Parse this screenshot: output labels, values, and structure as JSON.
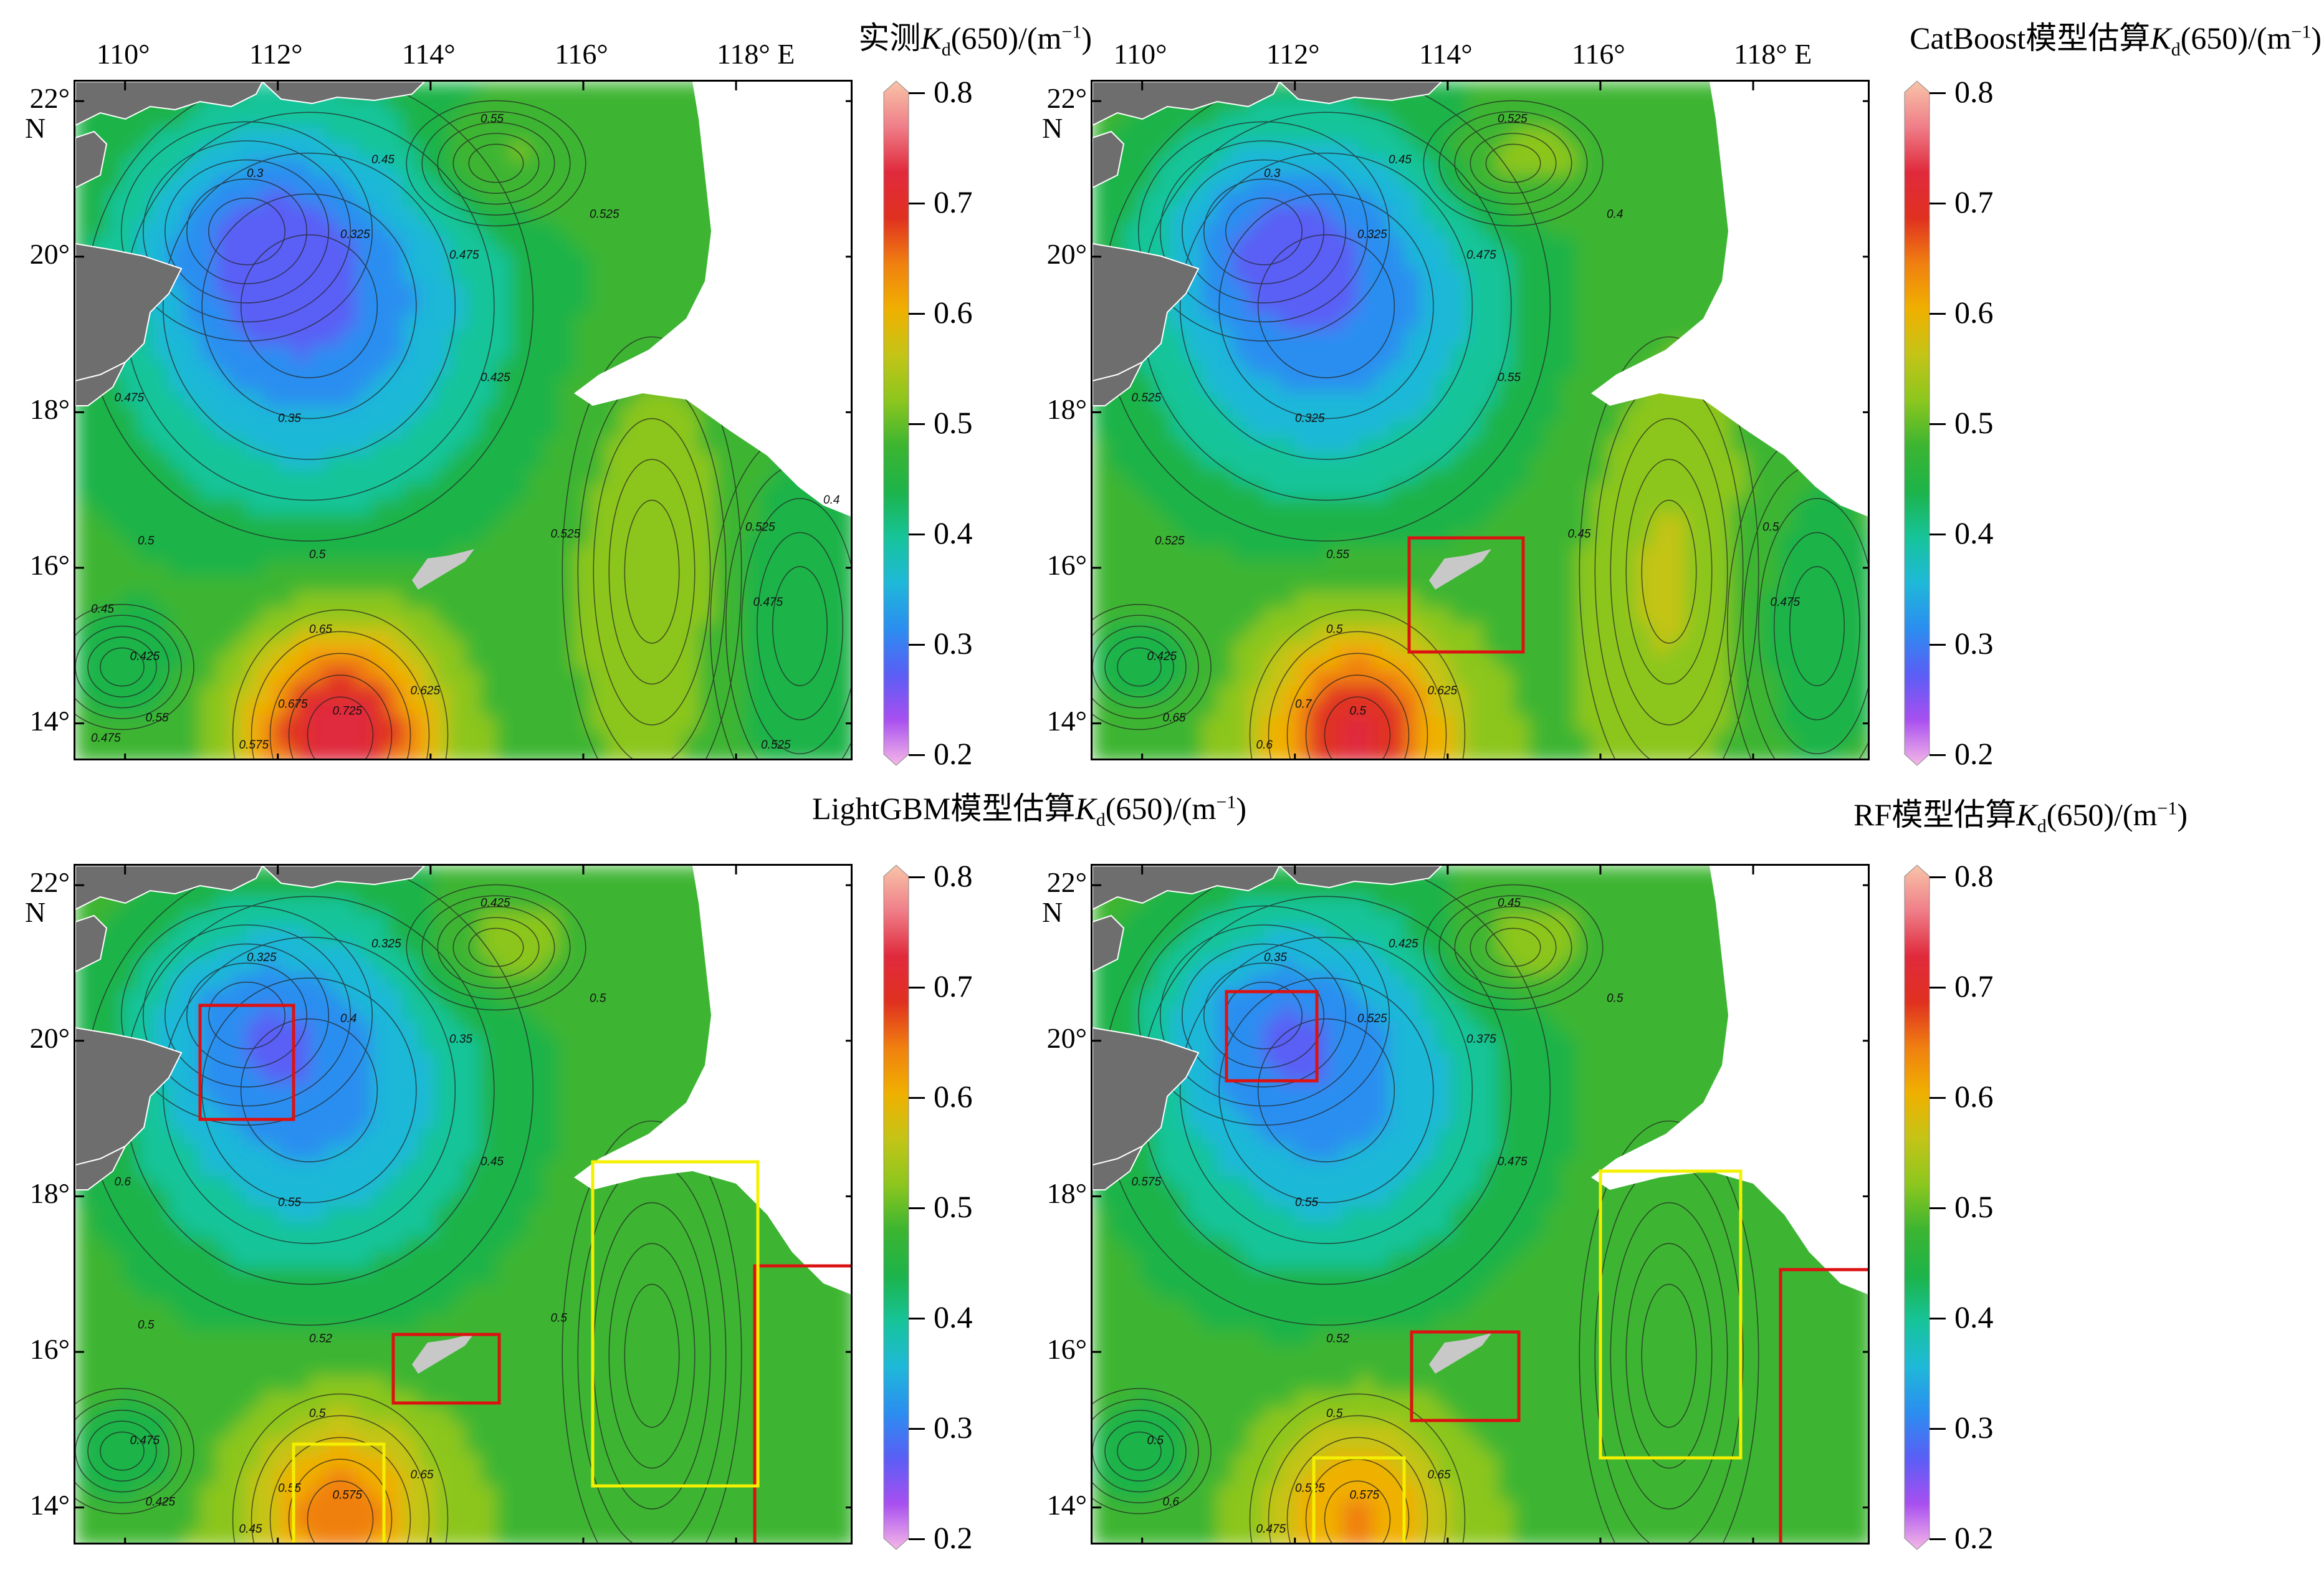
{
  "figure": {
    "lon_ticks": [
      "110°",
      "112°",
      "114°",
      "116°",
      "118° E"
    ],
    "lat_ticks": [
      "22°",
      "20°",
      "18°",
      "16°",
      "14°"
    ],
    "lat_unit_label": "N",
    "colorbar_ticks": [
      "0.8",
      "0.7",
      "0.6",
      "0.5",
      "0.4",
      "0.3",
      "0.2"
    ],
    "colorbar_range": [
      0.2,
      0.8
    ],
    "colorbar_colors": [
      "#f5b8e6",
      "#a84ff0",
      "#5a5ef5",
      "#2b8ef0",
      "#1fb8d8",
      "#16c49a",
      "#1db34a",
      "#3cb531",
      "#8cc61e",
      "#c4c417",
      "#f0b000",
      "#f08010",
      "#e03020",
      "#e02a3c",
      "#ef7e88",
      "#f8c4a8"
    ],
    "land_color": "#6e6e6e",
    "island_color": "#c8c8c8",
    "box_colors": {
      "red": "#dd1111",
      "yellow": "#f4f000"
    }
  },
  "panels": [
    {
      "id": "measured",
      "title_pre": "实测",
      "title_var": "K",
      "title_sub": "d",
      "title_post": "(650)/(m",
      "title_sup": "−1",
      "title_end": ")",
      "contour_labels": [
        "0.3",
        "0.325",
        "0.35",
        "0.45",
        "0.475",
        "0.425",
        "0.55",
        "0.525",
        "0.5",
        "0.65",
        "0.725",
        "0.625",
        "0.675",
        "0.575",
        "0.55",
        "0.425",
        "0.475",
        "0.5",
        "0.525",
        "0.525",
        "0.475",
        "0.4",
        "0.45",
        "0.475",
        "0.525"
      ]
    },
    {
      "id": "catboost",
      "title_pre": "CatBoost模型估算",
      "title_var": "K",
      "title_sub": "d",
      "title_post": "(650)/(m",
      "title_sup": "−1",
      "title_end": ")",
      "contour_labels": [
        "0.3",
        "0.325",
        "0.325",
        "0.45",
        "0.475",
        "0.55",
        "0.525",
        "0.4",
        "0.55",
        "0.5",
        "0.5",
        "0.625",
        "0.7",
        "0.6",
        "0.65",
        "0.425",
        "0.525",
        "0.525",
        "0.45",
        "0.5",
        "0.475"
      ]
    },
    {
      "id": "lightgbm",
      "title_pre": "LightGBM模型估算",
      "title_var": "K",
      "title_sub": "d",
      "title_post": "(650)/(m",
      "title_sup": "−1",
      "title_end": ")",
      "contour_labels": [
        "0.325",
        "0.4",
        "0.55",
        "0.325",
        "0.35",
        "0.45",
        "0.425",
        "0.5",
        "0.52",
        "0.5",
        "0.575",
        "0.65",
        "0.55",
        "0.45",
        "0.425",
        "0.475",
        "0.6",
        "0.5",
        "0.5"
      ]
    },
    {
      "id": "rf",
      "title_pre": "RF模型估算",
      "title_var": "K",
      "title_sub": "d",
      "title_post": "(650)/(m",
      "title_sup": "−1",
      "title_end": ")",
      "contour_labels": [
        "0.35",
        "0.525",
        "0.55",
        "0.425",
        "0.375",
        "0.475",
        "0.45",
        "0.5",
        "0.52",
        "0.5",
        "0.575",
        "0.65",
        "0.525",
        "0.475",
        "0.6",
        "0.5",
        "0.575"
      ]
    }
  ]
}
